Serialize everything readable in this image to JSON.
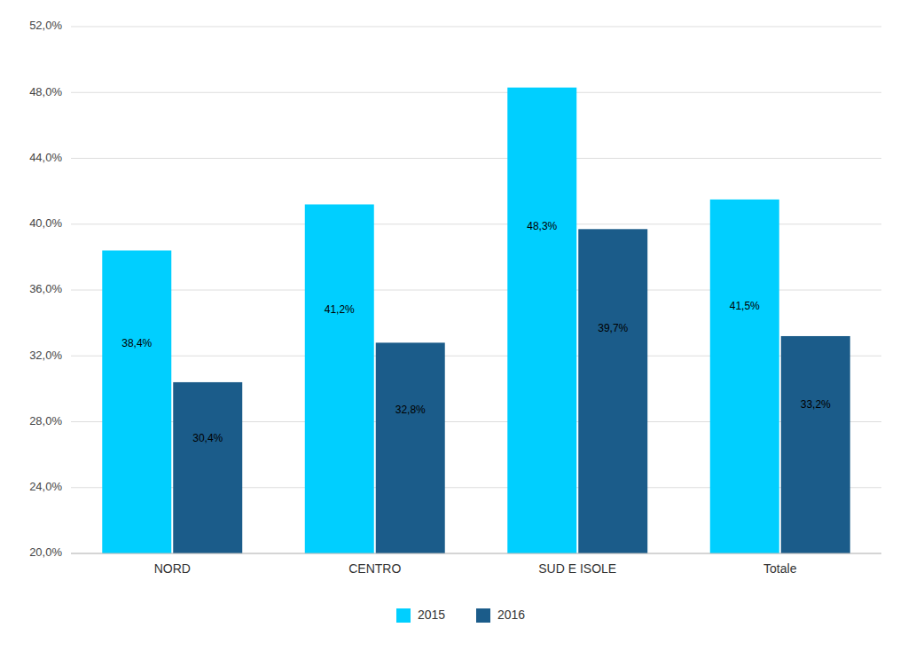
{
  "chart_data": {
    "type": "bar",
    "categories": [
      "NORD",
      "CENTRO",
      "SUD E ISOLE",
      "Totale"
    ],
    "series": [
      {
        "name": "2015",
        "color": "#00CFFF",
        "values": [
          38.4,
          41.2,
          48.3,
          41.5
        ],
        "value_labels": [
          "38,4%",
          "41,2%",
          "48,3%",
          "41,5%"
        ]
      },
      {
        "name": "2016",
        "color": "#1B5C8A",
        "values": [
          30.4,
          32.8,
          39.7,
          33.2
        ],
        "value_labels": [
          "30,4%",
          "32,8%",
          "39,7%",
          "33,2%"
        ]
      }
    ],
    "ylim": [
      20.0,
      52.0
    ],
    "yticks": [
      {
        "value": 20.0,
        "label": "20,0%"
      },
      {
        "value": 24.0,
        "label": "24,0%"
      },
      {
        "value": 28.0,
        "label": "28,0%"
      },
      {
        "value": 32.0,
        "label": "32,0%"
      },
      {
        "value": 36.0,
        "label": "36,0%"
      },
      {
        "value": 40.0,
        "label": "40,0%"
      },
      {
        "value": 44.0,
        "label": "44,0%"
      },
      {
        "value": 48.0,
        "label": "48,0%"
      },
      {
        "value": 52.0,
        "label": "52,0%"
      }
    ],
    "grid": true,
    "legend": "bottom",
    "data_labels": true
  }
}
